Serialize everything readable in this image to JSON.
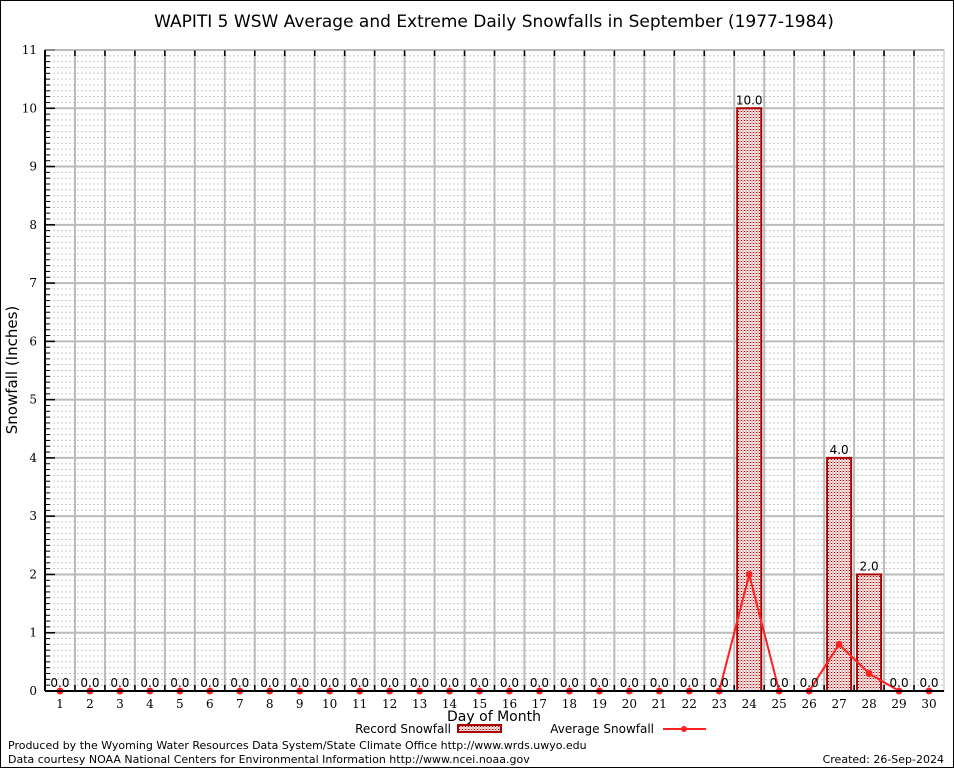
{
  "chart_data": {
    "type": "bar",
    "title": "WAPITI 5 WSW Average and Extreme Daily Snowfalls in September (1977-1984)",
    "xlabel": "Day of Month",
    "ylabel": "Snowfall (Inches)",
    "ylim": [
      0,
      11
    ],
    "yticks": [
      "0",
      "1",
      "2",
      "3",
      "4",
      "5",
      "6",
      "7",
      "8",
      "9",
      "10",
      "11"
    ],
    "categories": [
      "1",
      "2",
      "3",
      "4",
      "5",
      "6",
      "7",
      "8",
      "9",
      "10",
      "11",
      "12",
      "13",
      "14",
      "15",
      "16",
      "17",
      "18",
      "19",
      "20",
      "21",
      "22",
      "23",
      "24",
      "25",
      "26",
      "27",
      "28",
      "29",
      "30"
    ],
    "series": [
      {
        "name": "Record Snowfall",
        "type": "bar",
        "color": "#aa0000",
        "values": [
          0,
          0,
          0,
          0,
          0,
          0,
          0,
          0,
          0,
          0,
          0,
          0,
          0,
          0,
          0,
          0,
          0,
          0,
          0,
          0,
          0,
          0,
          0,
          10,
          0,
          0,
          4,
          2,
          0,
          0
        ],
        "labels": [
          "0.0",
          "0.0",
          "0.0",
          "0.0",
          "0.0",
          "0.0",
          "0.0",
          "0.0",
          "0.0",
          "0.0",
          "0.0",
          "0.0",
          "0.0",
          "0.0",
          "0.0",
          "0.0",
          "0.0",
          "0.0",
          "0.0",
          "0.0",
          "0.0",
          "0.0",
          "0.0",
          "10.0",
          "0.0",
          "0.0",
          "4.0",
          "2.0",
          "0.0",
          "0.0"
        ]
      },
      {
        "name": "Average Snowfall",
        "type": "line",
        "color": "#ff2020",
        "values": [
          0,
          0,
          0,
          0,
          0,
          0,
          0,
          0,
          0,
          0,
          0,
          0,
          0,
          0,
          0,
          0,
          0,
          0,
          0,
          0,
          0,
          0,
          0,
          2.0,
          0,
          0,
          0.8,
          0.3,
          0,
          0
        ]
      }
    ],
    "legend": "bottom-center",
    "grid": true
  },
  "footer": {
    "produced_by": "Produced by the Wyoming Water Resources Data System/State Climate Office http://www.wrds.uwyo.edu",
    "data_courtesy": "Data courtesy NOAA National Centers for Environmental Information http://www.ncei.noaa.gov",
    "created": "Created: 26-Sep-2024"
  }
}
